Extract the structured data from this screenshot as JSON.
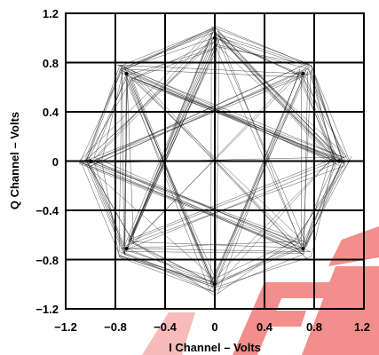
{
  "chart_data": {
    "type": "line",
    "title": "",
    "xlabel": "I Channel – Volts",
    "ylabel": "Q Channel – Volts",
    "xlim": [
      -1.2,
      1.2
    ],
    "ylim": [
      -1.2,
      1.2
    ],
    "grid": true,
    "x_tick_labels": [
      "−1.2",
      "−0.8",
      "−0.4",
      "0",
      "0.4",
      "0.8",
      "1.2"
    ],
    "y_tick_labels": [
      "1.2",
      "0.8",
      "0.4",
      "0",
      "−0.4",
      "−0.8",
      "−1.2"
    ],
    "x_ticks": [
      -1.2,
      -0.8,
      -0.4,
      0,
      0.4,
      0.8,
      1.2
    ],
    "y_ticks": [
      1.2,
      0.8,
      0.4,
      0,
      -0.4,
      -0.8,
      -1.2
    ],
    "constellation": {
      "description_type": "8PSK vector diagram",
      "points": [
        {
          "I": 0.0,
          "Q": 1.0
        },
        {
          "I": 0.71,
          "Q": 0.71
        },
        {
          "I": 1.0,
          "Q": 0.0
        },
        {
          "I": 0.71,
          "Q": -0.71
        },
        {
          "I": 0.0,
          "Q": -1.0
        },
        {
          "I": -0.71,
          "Q": -0.71
        },
        {
          "I": -1.0,
          "Q": 0.0
        },
        {
          "I": -0.71,
          "Q": 0.71
        }
      ]
    },
    "colors": {
      "trace": "#1a1a1a",
      "grid": "#000000",
      "watermark": "#e8322e"
    }
  }
}
